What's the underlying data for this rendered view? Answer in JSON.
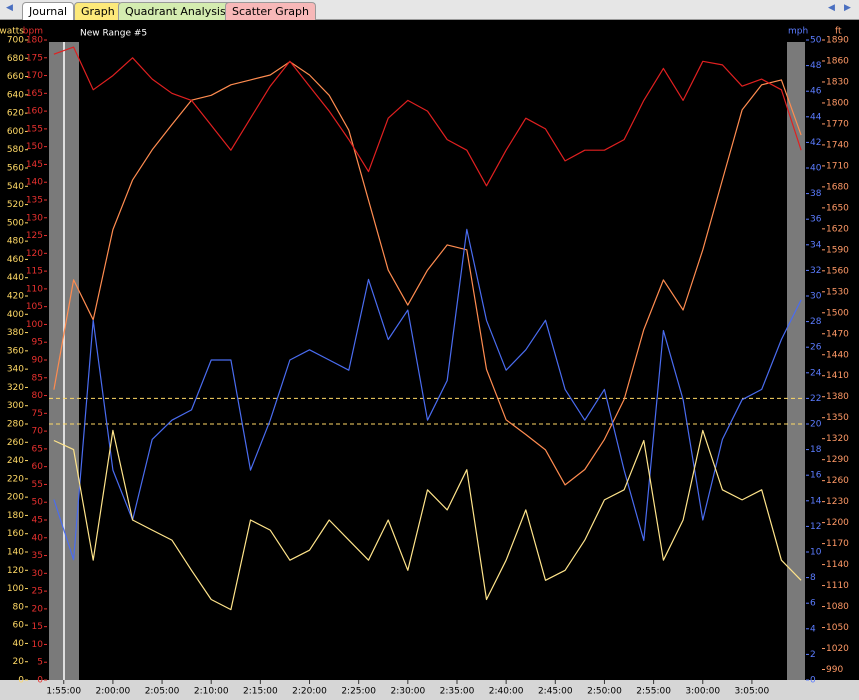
{
  "tabs": [
    "Journal",
    "Graph",
    "Quadrant Analysis",
    "Scatter Graph"
  ],
  "chart_data": {
    "type": "line",
    "title": "New Range #5",
    "x": [
      114,
      116,
      118,
      120,
      122,
      124,
      126,
      128,
      130,
      132,
      134,
      136,
      138,
      140,
      142,
      144,
      146,
      148,
      150,
      152,
      154,
      156,
      158,
      160,
      162,
      164,
      166,
      168,
      170,
      172,
      174,
      176,
      178,
      180,
      182,
      184,
      186,
      188,
      190
    ],
    "xlim": [
      113.5,
      190.4
    ],
    "xticks": [
      {
        "value": 115,
        "label": "1:55:00"
      },
      {
        "value": 120,
        "label": "2:00:00"
      },
      {
        "value": 125,
        "label": "2:05:00"
      },
      {
        "value": 130,
        "label": "2:10:00"
      },
      {
        "value": 135,
        "label": "2:15:00"
      },
      {
        "value": 140,
        "label": "2:20:00"
      },
      {
        "value": 145,
        "label": "2:25:00"
      },
      {
        "value": 150,
        "label": "2:30:00"
      },
      {
        "value": 155,
        "label": "2:35:00"
      },
      {
        "value": 160,
        "label": "2:40:00"
      },
      {
        "value": 165,
        "label": "2:45:00"
      },
      {
        "value": 170,
        "label": "2:50:00"
      },
      {
        "value": 175,
        "label": "2:55:00"
      },
      {
        "value": 180,
        "label": "3:00:00"
      },
      {
        "value": 185,
        "label": "3:05:00"
      }
    ],
    "axes": [
      {
        "label": "watts",
        "side": "left",
        "color": "#ffd966",
        "lim": [
          0,
          700
        ],
        "ticks": [
          0,
          20,
          40,
          60,
          80,
          100,
          120,
          140,
          160,
          180,
          200,
          220,
          240,
          260,
          280,
          300,
          320,
          340,
          360,
          380,
          400,
          420,
          440,
          460,
          480,
          500,
          520,
          540,
          560,
          580,
          600,
          620,
          640,
          660,
          680,
          700
        ]
      },
      {
        "label": "bpm",
        "side": "left",
        "color": "#e8312f",
        "lim": [
          0,
          180
        ],
        "ticks": [
          0,
          5,
          10,
          15,
          20,
          25,
          30,
          35,
          40,
          45,
          50,
          55,
          60,
          65,
          70,
          75,
          80,
          85,
          90,
          95,
          100,
          105,
          110,
          115,
          120,
          125,
          130,
          135,
          140,
          145,
          150,
          155,
          160,
          165,
          170,
          175,
          180
        ]
      },
      {
        "label": "mph",
        "side": "right",
        "color": "#5b7cff",
        "lim": [
          0,
          50
        ],
        "ticks": [
          0,
          2,
          4,
          6,
          8,
          10,
          12,
          14,
          16,
          18,
          20,
          22,
          24,
          26,
          28,
          30,
          32,
          34,
          36,
          38,
          40,
          42,
          44,
          46,
          48,
          50
        ]
      },
      {
        "label": "ft",
        "side": "right",
        "color": "#ff9966",
        "lim": [
          975,
          1890
        ],
        "ticks": [
          990,
          1020,
          1050,
          1080,
          1110,
          1140,
          1170,
          1200,
          1230,
          1260,
          1290,
          1320,
          1350,
          1380,
          1410,
          1440,
          1470,
          1500,
          1530,
          1560,
          1590,
          1620,
          1650,
          1680,
          1710,
          1740,
          1770,
          1800,
          1830,
          1860,
          1890
        ]
      }
    ],
    "series": [
      {
        "axis": 3,
        "color": "#ff8c50",
        "values": [
          1390,
          1547,
          1490,
          1619,
          1690,
          1733,
          1769,
          1804,
          1811,
          1826,
          1833,
          1840,
          1859,
          1840,
          1811,
          1761,
          1661,
          1561,
          1511,
          1561,
          1597,
          1590,
          1419,
          1347,
          1326,
          1304,
          1254,
          1276,
          1319,
          1376,
          1476,
          1547,
          1504,
          1590,
          1690,
          1790,
          1826,
          1833,
          1754
        ]
      },
      {
        "axis": 1,
        "color": "#e02020",
        "values": [
          176,
          178,
          166,
          170,
          175,
          169,
          165,
          163,
          156,
          149,
          158,
          167,
          174,
          167,
          160,
          152,
          143,
          158,
          163,
          160,
          152,
          149,
          139,
          149,
          158,
          155,
          146,
          149,
          149,
          152,
          163,
          172,
          163,
          174,
          173,
          167,
          169,
          166,
          149
        ]
      },
      {
        "axis": 2,
        "color": "#4a6cf0",
        "values": [
          14.1,
          9.4,
          28.1,
          16.4,
          12.5,
          18.8,
          20.3,
          21.1,
          25,
          25,
          16.4,
          20.3,
          25,
          25.8,
          25,
          24.2,
          31.3,
          26.6,
          28.9,
          20.3,
          23.4,
          35.2,
          28.1,
          24.2,
          25.8,
          28.1,
          22.7,
          20.3,
          22.7,
          16.4,
          10.9,
          27.3,
          21.9,
          12.5,
          18.8,
          21.9,
          22.7,
          26.6,
          29.7
        ]
      },
      {
        "axis": 0,
        "color": "#ffe48a",
        "values": [
          262,
          252,
          131,
          273,
          175,
          164,
          153,
          120,
          88,
          77,
          175,
          164,
          131,
          142,
          175,
          153,
          131,
          175,
          120,
          208,
          186,
          230,
          88,
          131,
          186,
          109,
          120,
          153,
          197,
          208,
          262,
          131,
          175,
          273,
          208,
          197,
          208,
          131,
          109
        ]
      }
    ],
    "reference_lines": {
      "axis": 0,
      "color": "#ffd966",
      "values": [
        308,
        280
      ]
    }
  }
}
